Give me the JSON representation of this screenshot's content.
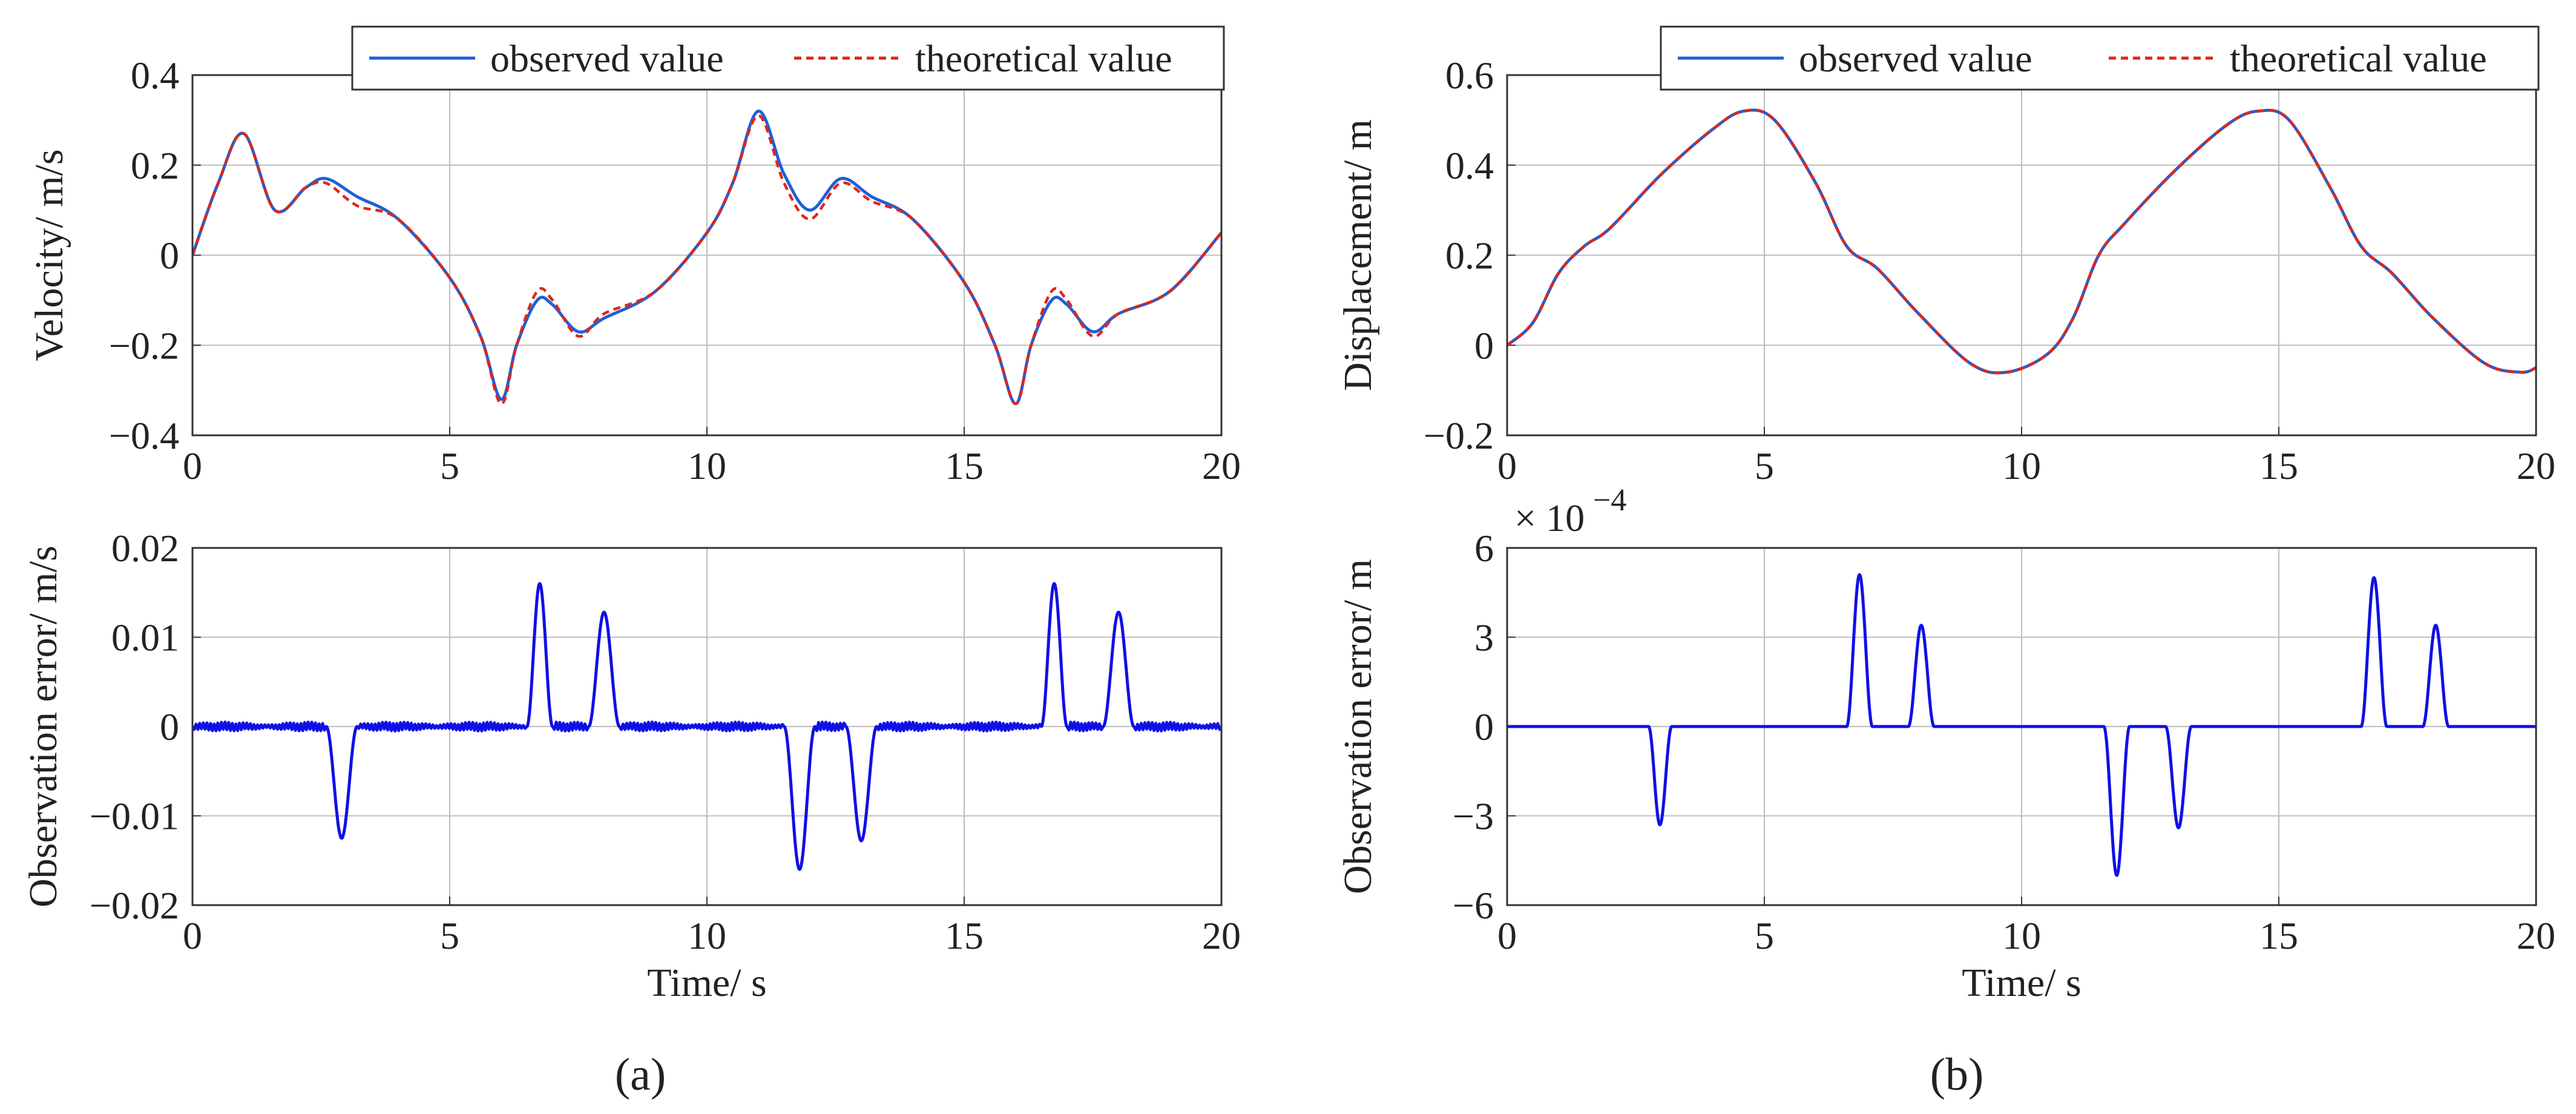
{
  "figure": {
    "panel_labels": [
      "(a)",
      "(b)"
    ],
    "colors": {
      "observed": "#1f5fd6",
      "theoretical": "#e0251b",
      "error": "#1010e6"
    }
  },
  "chart_data": [
    {
      "id": "velocity",
      "type": "line",
      "title": "",
      "xlabel": "",
      "ylabel": "Velocity/ m/s",
      "xlim": [
        0,
        20
      ],
      "ylim": [
        -0.4,
        0.4
      ],
      "xticks": [
        0,
        5,
        10,
        15,
        20
      ],
      "xtick_labels": [
        "0",
        "5",
        "10",
        "15",
        "20"
      ],
      "yticks": [
        -0.4,
        -0.2,
        0,
        0.2,
        0.4
      ],
      "ytick_labels": [
        "−0.4",
        "−0.2",
        "0",
        "0.2",
        "0.4"
      ],
      "grid": true,
      "legend": {
        "position": "top-right",
        "entries": [
          "observed value",
          "theoretical value"
        ]
      },
      "series": [
        {
          "name": "observed value",
          "style": "solid",
          "color": "#1f5fd6",
          "x": [
            0,
            0.5,
            1.0,
            1.6,
            2.2,
            2.6,
            3.2,
            4.0,
            5.0,
            5.6,
            6.0,
            6.3,
            6.7,
            7.0,
            7.5,
            8.0,
            9.0,
            10.0,
            10.5,
            11.0,
            11.5,
            12.0,
            12.6,
            13.2,
            14.0,
            15.0,
            15.6,
            16.0,
            16.3,
            16.7,
            17.0,
            17.5,
            18.0,
            19.0,
            20.0
          ],
          "y": [
            0,
            0.16,
            0.27,
            0.1,
            0.15,
            0.17,
            0.13,
            0.08,
            -0.05,
            -0.18,
            -0.32,
            -0.2,
            -0.1,
            -0.11,
            -0.17,
            -0.14,
            -0.08,
            0.05,
            0.16,
            0.32,
            0.18,
            0.1,
            0.17,
            0.13,
            0.08,
            -0.06,
            -0.2,
            -0.33,
            -0.2,
            -0.1,
            -0.11,
            -0.17,
            -0.13,
            -0.08,
            0.05
          ]
        },
        {
          "name": "theoretical value",
          "style": "dashed",
          "color": "#e0251b",
          "x": [
            0,
            0.5,
            1.0,
            1.6,
            2.2,
            2.6,
            3.2,
            4.0,
            5.0,
            5.6,
            6.0,
            6.3,
            6.7,
            7.0,
            7.5,
            8.0,
            9.0,
            10.0,
            10.5,
            11.0,
            11.5,
            12.0,
            12.6,
            13.2,
            14.0,
            15.0,
            15.6,
            16.0,
            16.3,
            16.7,
            17.0,
            17.5,
            18.0,
            19.0,
            20.0
          ],
          "y": [
            0,
            0.16,
            0.27,
            0.1,
            0.15,
            0.16,
            0.11,
            0.08,
            -0.05,
            -0.18,
            -0.33,
            -0.2,
            -0.08,
            -0.1,
            -0.18,
            -0.13,
            -0.08,
            0.05,
            0.16,
            0.31,
            0.16,
            0.08,
            0.16,
            0.12,
            0.08,
            -0.06,
            -0.2,
            -0.33,
            -0.2,
            -0.08,
            -0.1,
            -0.18,
            -0.13,
            -0.08,
            0.05
          ]
        }
      ]
    },
    {
      "id": "velocity_error",
      "type": "line",
      "title": "",
      "xlabel": "Time/ s",
      "ylabel": "Observation error/ m/s",
      "xlim": [
        0,
        20
      ],
      "ylim": [
        -0.02,
        0.02
      ],
      "xticks": [
        0,
        5,
        10,
        15,
        20
      ],
      "xtick_labels": [
        "0",
        "5",
        "10",
        "15",
        "20"
      ],
      "yticks": [
        -0.02,
        -0.01,
        0,
        0.01,
        0.02
      ],
      "ytick_labels": [
        "−0.02",
        "−0.01",
        "0",
        "0.01",
        "0.02"
      ],
      "grid": true,
      "series": [
        {
          "name": "observation error",
          "style": "solid",
          "color": "#1010e6",
          "noise": 0.0005,
          "x": [
            0,
            2.6,
            2.9,
            3.2,
            6.5,
            6.75,
            7.0,
            7.7,
            8.0,
            8.3,
            11.5,
            11.8,
            12.1,
            12.7,
            13.0,
            13.3,
            16.5,
            16.75,
            17.0,
            17.7,
            18.0,
            18.3,
            20.0
          ],
          "y": [
            0,
            0,
            -0.0125,
            0,
            0,
            0.016,
            0,
            0,
            0.0128,
            0,
            0,
            -0.016,
            0,
            0,
            -0.0128,
            0,
            0,
            0.016,
            0,
            0,
            0.0128,
            0,
            0
          ]
        }
      ]
    },
    {
      "id": "displacement",
      "type": "line",
      "title": "",
      "xlabel": "",
      "ylabel": "Displacement/ m",
      "xlim": [
        0,
        20
      ],
      "ylim": [
        -0.2,
        0.6
      ],
      "xticks": [
        0,
        5,
        10,
        15,
        20
      ],
      "xtick_labels": [
        "0",
        "5",
        "10",
        "15",
        "20"
      ],
      "yticks": [
        -0.2,
        0,
        0.2,
        0.4,
        0.6
      ],
      "ytick_labels": [
        "−0.2",
        "0",
        "0.2",
        "0.4",
        "0.6"
      ],
      "grid": true,
      "legend": {
        "position": "top-right",
        "entries": [
          "observed value",
          "theoretical value"
        ]
      },
      "series": [
        {
          "name": "observed value",
          "style": "solid",
          "color": "#1f5fd6",
          "x": [
            0,
            0.5,
            1.0,
            1.5,
            2.0,
            3.0,
            4.0,
            4.6,
            5.2,
            6.0,
            6.6,
            7.2,
            8.0,
            9.0,
            9.7,
            10.5,
            11.0,
            11.5,
            12.0,
            13.0,
            14.0,
            14.6,
            15.2,
            16.0,
            16.6,
            17.2,
            18.0,
            19.0,
            19.7,
            20.0
          ],
          "y": [
            0,
            0.05,
            0.16,
            0.22,
            0.26,
            0.38,
            0.48,
            0.52,
            0.5,
            0.36,
            0.22,
            0.17,
            0.07,
            -0.04,
            -0.06,
            -0.02,
            0.06,
            0.2,
            0.27,
            0.39,
            0.49,
            0.52,
            0.5,
            0.35,
            0.22,
            0.16,
            0.06,
            -0.04,
            -0.06,
            -0.05
          ]
        },
        {
          "name": "theoretical value",
          "style": "dashed",
          "color": "#e0251b",
          "x": [
            0,
            0.5,
            1.0,
            1.5,
            2.0,
            3.0,
            4.0,
            4.6,
            5.2,
            6.0,
            6.6,
            7.2,
            8.0,
            9.0,
            9.7,
            10.5,
            11.0,
            11.5,
            12.0,
            13.0,
            14.0,
            14.6,
            15.2,
            16.0,
            16.6,
            17.2,
            18.0,
            19.0,
            19.7,
            20.0
          ],
          "y": [
            0,
            0.05,
            0.16,
            0.22,
            0.26,
            0.38,
            0.48,
            0.52,
            0.5,
            0.36,
            0.22,
            0.17,
            0.07,
            -0.04,
            -0.06,
            -0.02,
            0.06,
            0.2,
            0.27,
            0.39,
            0.49,
            0.52,
            0.5,
            0.35,
            0.22,
            0.16,
            0.06,
            -0.04,
            -0.06,
            -0.05
          ]
        }
      ]
    },
    {
      "id": "displacement_error",
      "type": "line",
      "title": "",
      "xlabel": "Time/ s",
      "ylabel": "Observation error/ m",
      "xlim": [
        0,
        20
      ],
      "ylim": [
        -6,
        6
      ],
      "scale_label": "× 10",
      "scale_exponent": "−4",
      "xticks": [
        0,
        5,
        10,
        15,
        20
      ],
      "xtick_labels": [
        "0",
        "5",
        "10",
        "15",
        "20"
      ],
      "yticks": [
        -6,
        -3,
        0,
        3,
        6
      ],
      "ytick_labels": [
        "−6",
        "−3",
        "0",
        "3",
        "6"
      ],
      "grid": true,
      "series": [
        {
          "name": "observation error",
          "style": "solid",
          "color": "#1010e6",
          "noise": 0,
          "x": [
            0,
            2.75,
            2.97,
            3.2,
            6.6,
            6.85,
            7.1,
            7.8,
            8.05,
            8.3,
            11.6,
            11.85,
            12.1,
            12.8,
            13.05,
            13.3,
            16.6,
            16.85,
            17.1,
            17.8,
            18.05,
            18.3,
            20.0
          ],
          "y": [
            0,
            0,
            -3.3,
            0,
            0,
            5.1,
            0,
            0,
            3.4,
            0,
            0,
            -5.0,
            0,
            0,
            -3.4,
            0,
            0,
            5.0,
            0,
            0,
            3.4,
            0,
            0
          ]
        }
      ]
    }
  ]
}
